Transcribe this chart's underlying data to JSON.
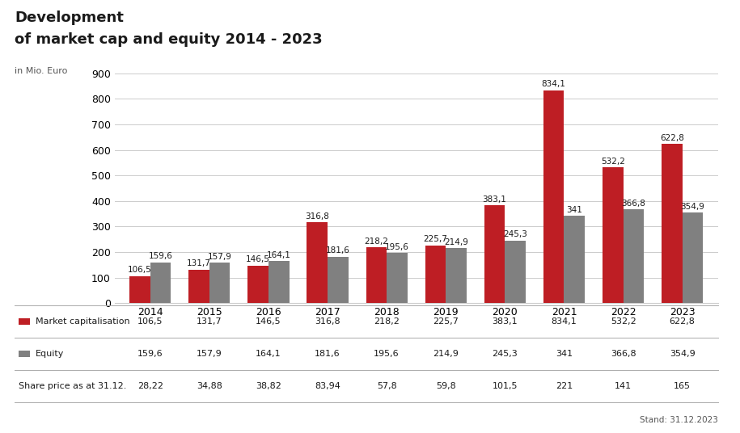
{
  "title_line1": "Development",
  "title_line2": "of market cap and equity 2014 - 2023",
  "ylabel": "in Mio. Euro",
  "years": [
    "2014",
    "2015",
    "2016",
    "2017",
    "2018",
    "2019",
    "2020",
    "2021",
    "2022",
    "2023"
  ],
  "market_cap": [
    106.5,
    131.7,
    146.5,
    316.8,
    218.2,
    225.7,
    383.1,
    834.1,
    532.2,
    622.8
  ],
  "equity": [
    159.6,
    157.9,
    164.1,
    181.6,
    195.6,
    214.9,
    245.3,
    341.0,
    366.8,
    354.9
  ],
  "share_price": [
    28.22,
    34.88,
    38.82,
    83.94,
    57.8,
    59.8,
    101.5,
    221,
    141,
    165
  ],
  "share_price_str": [
    "28,22",
    "34,88",
    "38,82",
    "83,94",
    "57,8",
    "59,8",
    "101,5",
    "221",
    "141",
    "165"
  ],
  "market_cap_str": [
    "106,5",
    "131,7",
    "146,5",
    "316,8",
    "218,2",
    "225,7",
    "383,1",
    "834,1",
    "532,2",
    "622,8"
  ],
  "equity_str": [
    "159,6",
    "157,9",
    "164,1",
    "181,6",
    "195,6",
    "214,9",
    "245,3",
    "341",
    "366,8",
    "354,9"
  ],
  "bar_color_red": "#be1e24",
  "bar_color_gray": "#808080",
  "title_color": "#1a1a1a",
  "underline_color": "#be1e24",
  "background_color": "#ffffff",
  "ylim": [
    0,
    950
  ],
  "yticks": [
    0,
    100,
    200,
    300,
    400,
    500,
    600,
    700,
    800,
    900
  ],
  "legend_label_red": "Market capitalisation",
  "legend_label_gray": "Equity",
  "table_row3_label": "Share price as at 31.12.",
  "footer_text": "Stand: 31.12.2023",
  "bar_width": 0.35
}
